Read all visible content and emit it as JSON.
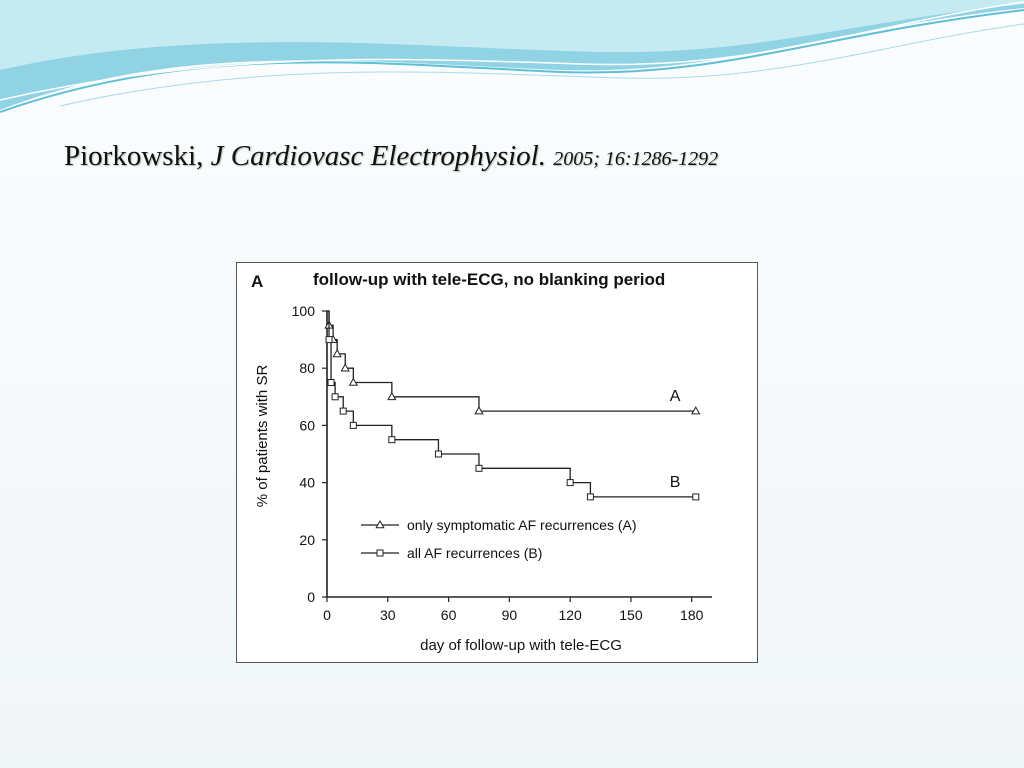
{
  "citation": {
    "author": "Piorkowski,",
    "journal": "J Cardiovasc Electrophysiol.",
    "ref": "2005; 16:1286-1292"
  },
  "colors": {
    "wave_dark": "#5fbfd8",
    "wave_light": "#b9e4ef",
    "line": "#222222"
  },
  "chart_data": {
    "type": "line",
    "panel_label": "A",
    "title": "follow-up with tele-ECG, no blanking period",
    "xlabel": "day of follow-up with tele-ECG",
    "ylabel": "% of patients with SR",
    "xlim": [
      0,
      190
    ],
    "ylim": [
      0,
      100
    ],
    "xticks": [
      "0",
      "30",
      "60",
      "90",
      "120",
      "150",
      "180"
    ],
    "yticks": [
      "0",
      "20",
      "40",
      "60",
      "80",
      "100"
    ],
    "grid": false,
    "legend": {
      "placement": "bottom-right",
      "entries": [
        "only symptomatic AF recurrences (A)",
        "all AF recurrences (B)"
      ]
    },
    "series": [
      {
        "name": "only symptomatic AF recurrences (A)",
        "label": "A",
        "marker": "triangle",
        "points": [
          [
            0,
            100
          ],
          [
            1,
            95
          ],
          [
            3,
            90
          ],
          [
            5,
            85
          ],
          [
            9,
            80
          ],
          [
            13,
            75
          ],
          [
            32,
            70
          ],
          [
            75,
            65
          ],
          [
            182,
            65
          ]
        ]
      },
      {
        "name": "all AF recurrences (B)",
        "label": "B",
        "marker": "square",
        "points": [
          [
            0,
            100
          ],
          [
            1,
            90
          ],
          [
            2,
            75
          ],
          [
            4,
            70
          ],
          [
            8,
            65
          ],
          [
            13,
            60
          ],
          [
            32,
            55
          ],
          [
            55,
            50
          ],
          [
            75,
            45
          ],
          [
            120,
            40
          ],
          [
            130,
            35
          ],
          [
            182,
            35
          ]
        ]
      }
    ]
  }
}
